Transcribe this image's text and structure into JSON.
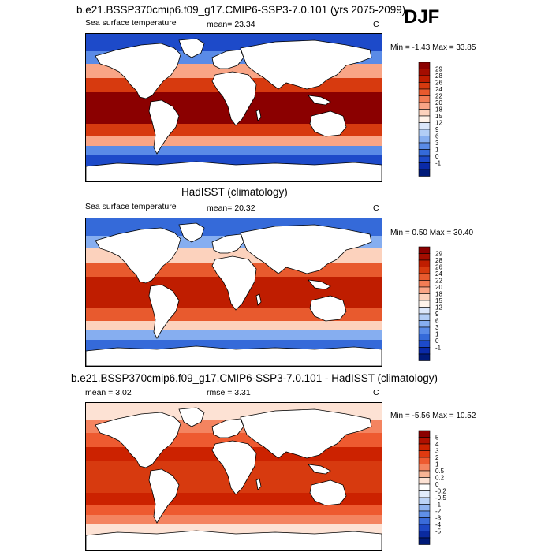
{
  "season": "DJF",
  "panels": [
    {
      "title": "b.e21.BSSP370cmip6.f09_g17.CMIP6-SSP3-7.0.101 (yrs 2075-2099)",
      "left_label": "Sea surface temperature",
      "mid_label": "mean=  23.34",
      "unit": "C",
      "minmax": "Min =  -1.43 Max =  33.85",
      "colorbar_labels": [
        "29",
        "28",
        "26",
        "24",
        "22",
        "20",
        "18",
        "15",
        "12",
        "9",
        "6",
        "3",
        "1",
        "0",
        "-1"
      ],
      "colorbar_colors": [
        "#8b0000",
        "#a40d00",
        "#bf1d00",
        "#d73a0f",
        "#e85a2e",
        "#f27d55",
        "#f9a586",
        "#fcd2bd",
        "#fff3ea",
        "#dbe7fb",
        "#b2cdf6",
        "#86aef0",
        "#5a8be7",
        "#356ad9",
        "#1d4ac9",
        "#0a2aa8",
        "#001a7a"
      ],
      "map": {
        "tropics": "#8b0000",
        "midlat": "#d73a0f",
        "subpolar": "#f9a586",
        "cold": "#5a8be7",
        "polar": "#1d4ac9"
      }
    },
    {
      "title": "HadISST (climatology)",
      "left_label": "Sea surface temperature",
      "mid_label": "mean=  20.32",
      "unit": "C",
      "minmax": "Min =   0.50 Max =  30.40",
      "colorbar_labels": [
        "29",
        "28",
        "26",
        "24",
        "22",
        "20",
        "18",
        "15",
        "12",
        "9",
        "6",
        "3",
        "1",
        "0",
        "-1"
      ],
      "colorbar_colors": [
        "#8b0000",
        "#a40d00",
        "#bf1d00",
        "#d73a0f",
        "#e85a2e",
        "#f27d55",
        "#f9a586",
        "#fcd2bd",
        "#fff3ea",
        "#dbe7fb",
        "#b2cdf6",
        "#86aef0",
        "#5a8be7",
        "#356ad9",
        "#1d4ac9",
        "#0a2aa8",
        "#001a7a"
      ],
      "map": {
        "tropics": "#bf1d00",
        "midlat": "#e85a2e",
        "subpolar": "#fcd2bd",
        "cold": "#86aef0",
        "polar": "#356ad9"
      }
    },
    {
      "title": "b.e21.BSSP370cmip6.f09_g17.CMIP6-SSP3-7.0.101 - HadISST (climatology)",
      "left_label": "mean =   3.02",
      "mid_label": "rmse =   3.31",
      "unit": "C",
      "minmax": "Min =  -5.56 Max =  10.52",
      "colorbar_labels": [
        "5",
        "4",
        "3",
        "2",
        "1",
        "0.5",
        "0.2",
        "0",
        "-0.2",
        "-0.5",
        "-1",
        "-2",
        "-3",
        "-4",
        "-5"
      ],
      "colorbar_colors": [
        "#8b0000",
        "#b01000",
        "#cc2200",
        "#e03a10",
        "#ee5a30",
        "#f48460",
        "#f8b495",
        "#fde2d4",
        "#ffffff",
        "#e2ecfb",
        "#bcd3f6",
        "#8fb3f0",
        "#5f8fe7",
        "#3a6bd9",
        "#1d47c4",
        "#0a2aa0",
        "#001a78"
      ],
      "map": {
        "tropics": "#d73a0f",
        "midlat": "#cc2200",
        "subpolar": "#ee5a30",
        "cold": "#f48460",
        "polar": "#fde2d4"
      }
    }
  ]
}
